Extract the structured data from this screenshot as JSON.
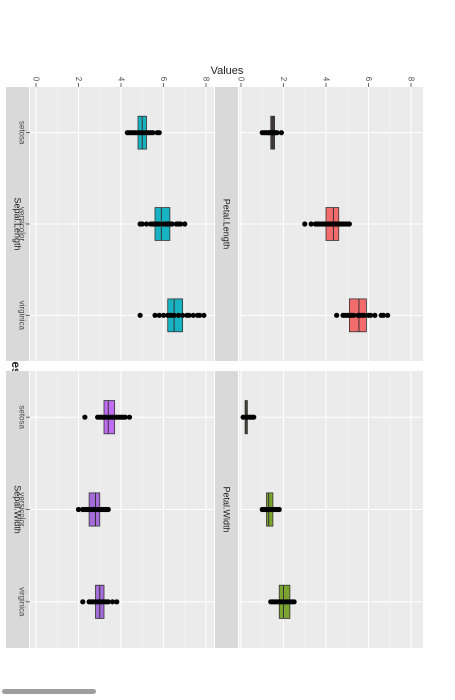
{
  "colors": {
    "panel_bg": "#ebebeb",
    "grid_major": "#ffffff",
    "strip_bg": "#d9d9d9",
    "point": "#000000"
  },
  "chart_data": {
    "type": "box",
    "orientation": "rotated-90-clockwise",
    "ylabel": "Values",
    "xlabel": "Species",
    "categories": [
      "setosa",
      "versicolor",
      "virginica"
    ],
    "ylim": [
      0,
      8
    ],
    "yticks": [
      0,
      2,
      4,
      6,
      8
    ],
    "grid": true,
    "facets": [
      {
        "name": "Petal.Length",
        "fills": [
          "#4a3c3c",
          "#f26c6c",
          "#f26c6c"
        ],
        "boxes": [
          {
            "category": "setosa",
            "q1": 1.4,
            "median": 1.5,
            "q3": 1.58
          },
          {
            "category": "versicolor",
            "q1": 4.0,
            "median": 4.35,
            "q3": 4.6
          },
          {
            "category": "virginica",
            "q1": 5.1,
            "median": 5.55,
            "q3": 5.9
          }
        ],
        "points": [
          [
            1.0,
            1.1,
            1.2,
            1.3,
            1.3,
            1.4,
            1.4,
            1.5,
            1.5,
            1.5,
            1.6,
            1.6,
            1.7,
            1.9
          ],
          [
            3.0,
            3.3,
            3.5,
            3.6,
            3.7,
            3.8,
            3.9,
            4.0,
            4.1,
            4.2,
            4.3,
            4.4,
            4.5,
            4.6,
            4.7,
            4.8,
            4.9,
            5.0,
            5.1
          ],
          [
            4.5,
            4.8,
            4.9,
            5.0,
            5.1,
            5.2,
            5.3,
            5.5,
            5.6,
            5.7,
            5.8,
            6.0,
            6.1,
            6.3,
            6.6,
            6.7,
            6.9
          ]
        ]
      },
      {
        "name": "Petal.Width",
        "fills": [
          "#3c4a30",
          "#7aa330",
          "#7aa330"
        ],
        "boxes": [
          {
            "category": "setosa",
            "q1": 0.2,
            "median": 0.2,
            "q3": 0.3
          },
          {
            "category": "versicolor",
            "q1": 1.2,
            "median": 1.3,
            "q3": 1.5
          },
          {
            "category": "virginica",
            "q1": 1.8,
            "median": 2.0,
            "q3": 2.3
          }
        ],
        "points": [
          [
            0.1,
            0.2,
            0.3,
            0.4,
            0.5,
            0.6
          ],
          [
            1.0,
            1.1,
            1.2,
            1.3,
            1.4,
            1.5,
            1.6,
            1.7,
            1.8
          ],
          [
            1.4,
            1.5,
            1.6,
            1.7,
            1.8,
            1.9,
            2.0,
            2.1,
            2.2,
            2.3,
            2.4,
            2.5
          ]
        ]
      },
      {
        "name": "Sepal.Length",
        "fills": [
          "#17b3c2",
          "#17b3c2",
          "#17b3c2"
        ],
        "boxes": [
          {
            "category": "setosa",
            "q1": 4.8,
            "median": 5.0,
            "q3": 5.2
          },
          {
            "category": "versicolor",
            "q1": 5.6,
            "median": 5.9,
            "q3": 6.3
          },
          {
            "category": "virginica",
            "q1": 6.2,
            "median": 6.5,
            "q3": 6.9
          }
        ],
        "points": [
          [
            4.3,
            4.4,
            4.5,
            4.6,
            4.7,
            4.8,
            4.9,
            5.0,
            5.1,
            5.2,
            5.3,
            5.4,
            5.5,
            5.7,
            5.8
          ],
          [
            4.9,
            5.0,
            5.2,
            5.4,
            5.5,
            5.6,
            5.7,
            5.8,
            6.0,
            6.1,
            6.2,
            6.3,
            6.4,
            6.6,
            6.7,
            6.8,
            7.0
          ],
          [
            4.9,
            5.6,
            5.8,
            6.0,
            6.2,
            6.3,
            6.4,
            6.5,
            6.7,
            6.9,
            7.1,
            7.2,
            7.4,
            7.6,
            7.7,
            7.9
          ]
        ]
      },
      {
        "name": "Sepal.Width",
        "fills": [
          "#c06cf2",
          "#a36cd9",
          "#a36cd9"
        ],
        "boxes": [
          {
            "category": "setosa",
            "q1": 3.2,
            "median": 3.4,
            "q3": 3.7
          },
          {
            "category": "versicolor",
            "q1": 2.5,
            "median": 2.8,
            "q3": 3.0
          },
          {
            "category": "virginica",
            "q1": 2.8,
            "median": 3.0,
            "q3": 3.2
          }
        ],
        "points": [
          [
            2.3,
            2.9,
            3.0,
            3.1,
            3.2,
            3.3,
            3.4,
            3.5,
            3.6,
            3.7,
            3.8,
            3.9,
            4.0,
            4.1,
            4.2,
            4.4
          ],
          [
            2.0,
            2.2,
            2.3,
            2.4,
            2.5,
            2.6,
            2.7,
            2.8,
            2.9,
            3.0,
            3.1,
            3.2,
            3.3,
            3.4
          ],
          [
            2.2,
            2.5,
            2.6,
            2.7,
            2.8,
            2.9,
            3.0,
            3.1,
            3.2,
            3.3,
            3.4,
            3.6,
            3.8
          ]
        ]
      }
    ]
  }
}
